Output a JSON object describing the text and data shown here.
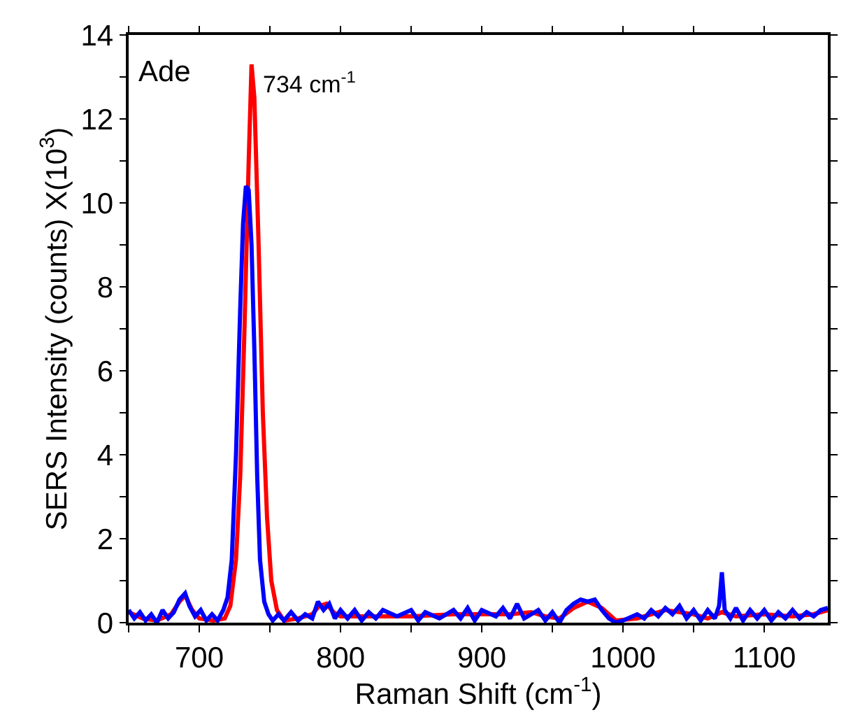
{
  "chart_data": {
    "type": "line",
    "xlabel": "Raman Shift (cm$^{-1}$)",
    "ylabel": "SERS Intensity (counts) X(10$^{3}$)",
    "annotations": [
      "Ade",
      {
        "text": "734 cm$^{-1}$",
        "x": 737,
        "y": 13.3
      }
    ],
    "xlim": [
      650,
      1145
    ],
    "ylim": [
      0,
      14
    ],
    "xticks": [
      {
        "value": 650,
        "label": null
      },
      700,
      {
        "value": 750,
        "label": null
      },
      800,
      {
        "value": 850,
        "label": null
      },
      900,
      {
        "value": 950,
        "label": null
      },
      1000,
      {
        "value": 1050,
        "label": null
      },
      1100
    ],
    "yticks": [
      0,
      {
        "value": 1,
        "label": null
      },
      2,
      {
        "value": 3,
        "label": null
      },
      4,
      {
        "value": 5,
        "label": null
      },
      6,
      {
        "value": 7,
        "label": null
      },
      8,
      {
        "value": 9,
        "label": null
      },
      10,
      {
        "value": 11,
        "label": null
      },
      12,
      {
        "value": 13,
        "label": null
      },
      14
    ],
    "marker": "none",
    "line_style": "solid",
    "series": [
      {
        "color": "#ff0000",
        "x": [
          650,
          660,
          670,
          680,
          686,
          690,
          695,
          700,
          710,
          718,
          722,
          726,
          729,
          732,
          735,
          737,
          739,
          742,
          745,
          748,
          751,
          755,
          760,
          770,
          780,
          785,
          790,
          795,
          800,
          820,
          850,
          880,
          900,
          920,
          935,
          945,
          955,
          965,
          975,
          985,
          995,
          1010,
          1030,
          1050,
          1060,
          1070,
          1080,
          1100,
          1120,
          1135,
          1145
        ],
        "values": [
          0.25,
          0.1,
          0.05,
          0.2,
          0.5,
          0.65,
          0.3,
          0.1,
          0.05,
          0.1,
          0.4,
          1.5,
          3.5,
          7,
          11,
          13.3,
          12.5,
          9,
          5,
          2.5,
          1.0,
          0.3,
          0.05,
          0.1,
          0.2,
          0.4,
          0.45,
          0.25,
          0.15,
          0.15,
          0.15,
          0.2,
          0.2,
          0.2,
          0.25,
          0.15,
          0.1,
          0.35,
          0.5,
          0.35,
          0.05,
          0.1,
          0.3,
          0.2,
          0.1,
          0.25,
          0.15,
          0.2,
          0.15,
          0.2,
          0.3
        ]
      },
      {
        "color": "#0000ff",
        "x": [
          650,
          654,
          658,
          662,
          666,
          670,
          674,
          678,
          682,
          686,
          690,
          693,
          697,
          701,
          705,
          709,
          713,
          717,
          720,
          723,
          726,
          729,
          731,
          733,
          735,
          737,
          739,
          741,
          743,
          746,
          749,
          752,
          756,
          760,
          765,
          770,
          775,
          780,
          784,
          788,
          792,
          796,
          800,
          805,
          810,
          815,
          820,
          825,
          830,
          840,
          850,
          855,
          860,
          870,
          880,
          885,
          890,
          895,
          900,
          910,
          915,
          920,
          925,
          930,
          940,
          945,
          950,
          955,
          960,
          965,
          970,
          975,
          980,
          985,
          990,
          995,
          1000,
          1010,
          1015,
          1020,
          1025,
          1030,
          1035,
          1040,
          1045,
          1050,
          1055,
          1060,
          1065,
          1068,
          1070,
          1072,
          1076,
          1080,
          1085,
          1090,
          1095,
          1100,
          1105,
          1110,
          1115,
          1120,
          1125,
          1130,
          1135,
          1140,
          1145
        ],
        "values": [
          0.3,
          0.1,
          0.25,
          0.05,
          0.2,
          0.0,
          0.3,
          0.1,
          0.25,
          0.55,
          0.7,
          0.4,
          0.15,
          0.3,
          0.05,
          0.2,
          0.05,
          0.3,
          0.6,
          1.5,
          4,
          7.5,
          9.5,
          10.4,
          10.3,
          9,
          6.5,
          3.5,
          1.5,
          0.5,
          0.2,
          0.05,
          0.2,
          0.05,
          0.25,
          0.05,
          0.2,
          0.1,
          0.5,
          0.3,
          0.45,
          0.1,
          0.3,
          0.1,
          0.3,
          0.05,
          0.25,
          0.1,
          0.3,
          0.15,
          0.3,
          0.05,
          0.25,
          0.1,
          0.3,
          0.1,
          0.35,
          0.05,
          0.3,
          0.15,
          0.35,
          0.1,
          0.45,
          0.1,
          0.3,
          0.05,
          0.25,
          0.0,
          0.3,
          0.45,
          0.55,
          0.5,
          0.55,
          0.3,
          0.1,
          0.0,
          0.05,
          0.2,
          0.1,
          0.3,
          0.15,
          0.35,
          0.2,
          0.4,
          0.1,
          0.3,
          0.05,
          0.3,
          0.1,
          0.4,
          1.2,
          0.3,
          0.1,
          0.35,
          0.05,
          0.3,
          0.1,
          0.3,
          0.05,
          0.25,
          0.1,
          0.3,
          0.1,
          0.25,
          0.15,
          0.3,
          0.35
        ]
      }
    ]
  }
}
